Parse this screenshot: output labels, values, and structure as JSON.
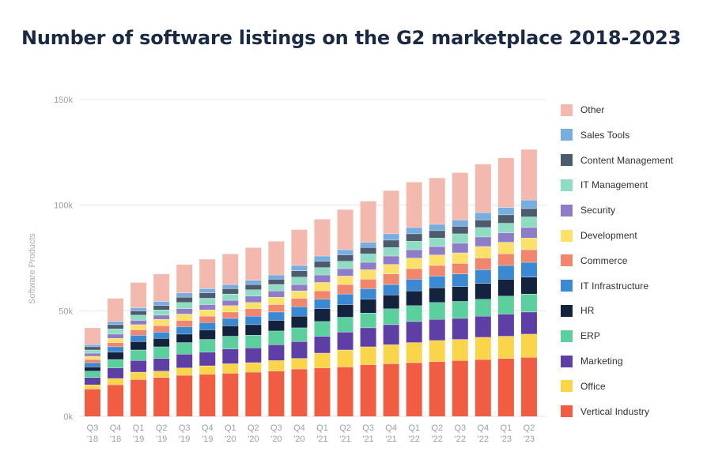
{
  "chart_data": {
    "type": "bar",
    "stacked": true,
    "title": "Number of software listings on the G2 marketplace 2018-2023",
    "ylabel": "Software Products",
    "xlabel": "",
    "ylim": [
      0,
      150000
    ],
    "y_ticks": [
      0,
      50000,
      100000,
      150000
    ],
    "y_tick_labels": [
      "0k",
      "50k",
      "100k",
      "150k"
    ],
    "grid": true,
    "legend_position": "right",
    "categories": [
      [
        "Q3",
        "'18"
      ],
      [
        "Q4",
        "'18"
      ],
      [
        "Q1",
        "'19"
      ],
      [
        "Q2",
        "'19"
      ],
      [
        "Q3",
        "'19"
      ],
      [
        "Q4",
        "'19"
      ],
      [
        "Q1",
        "'20"
      ],
      [
        "Q2",
        "'20"
      ],
      [
        "Q3",
        "'20"
      ],
      [
        "Q4",
        "'20"
      ],
      [
        "Q1",
        "'21"
      ],
      [
        "Q2",
        "'21"
      ],
      [
        "Q3",
        "'21"
      ],
      [
        "Q4",
        "'21"
      ],
      [
        "Q1",
        "'22"
      ],
      [
        "Q2",
        "'22"
      ],
      [
        "Q3",
        "'22"
      ],
      [
        "Q4",
        "'22"
      ],
      [
        "Q1",
        "'23"
      ],
      [
        "Q2",
        "'23"
      ]
    ],
    "series": [
      {
        "name": "Vertical Industry",
        "color": "#f05d42",
        "values": [
          13000,
          15000,
          17500,
          18500,
          19500,
          20000,
          20500,
          21000,
          21500,
          22500,
          23000,
          23500,
          24500,
          25000,
          25500,
          26000,
          26500,
          27000,
          27500,
          28000
        ]
      },
      {
        "name": "Office",
        "color": "#fad54a",
        "values": [
          2000,
          3000,
          3500,
          3000,
          3500,
          4000,
          4500,
          4500,
          5000,
          5000,
          7000,
          8000,
          8500,
          9000,
          9500,
          10000,
          10000,
          10500,
          10500,
          11000
        ]
      },
      {
        "name": "Marketing",
        "color": "#5e3fa6",
        "values": [
          3500,
          5000,
          5500,
          6000,
          6500,
          6500,
          7000,
          7000,
          7500,
          8000,
          8000,
          8500,
          9000,
          9500,
          10000,
          10000,
          10000,
          10000,
          10500,
          10500
        ]
      },
      {
        "name": "ERP",
        "color": "#5ccf9e",
        "values": [
          3000,
          4000,
          5000,
          5500,
          5500,
          6000,
          6000,
          6000,
          6500,
          6500,
          7000,
          7000,
          7000,
          7500,
          7500,
          8000,
          8000,
          8000,
          8500,
          8500
        ]
      },
      {
        "name": "HR",
        "color": "#13223d",
        "values": [
          2000,
          3500,
          4000,
          4000,
          4000,
          4500,
          5000,
          5000,
          5000,
          5500,
          6000,
          6000,
          6500,
          6500,
          7000,
          7000,
          7000,
          7500,
          8000,
          8000
        ]
      },
      {
        "name": "IT Infrastructure",
        "color": "#3b88d3",
        "values": [
          2000,
          2500,
          3000,
          3000,
          3500,
          3500,
          3500,
          4000,
          4000,
          4500,
          4500,
          5000,
          5000,
          5000,
          5500,
          5500,
          6000,
          6500,
          6500,
          7000
        ]
      },
      {
        "name": "Commerce",
        "color": "#f2866d",
        "values": [
          1500,
          2000,
          2500,
          3000,
          3000,
          3000,
          3000,
          3500,
          3500,
          4000,
          4000,
          4500,
          4500,
          5000,
          5000,
          5000,
          5000,
          5500,
          5500,
          6000
        ]
      },
      {
        "name": "Development",
        "color": "#fbe06a",
        "values": [
          1500,
          2000,
          2500,
          3000,
          3000,
          3000,
          3000,
          3000,
          3500,
          3500,
          4000,
          4000,
          4500,
          4500,
          5000,
          5000,
          5000,
          5500,
          5500,
          5500
        ]
      },
      {
        "name": "Security",
        "color": "#8f7cc9",
        "values": [
          1500,
          2000,
          2000,
          2000,
          2500,
          2500,
          2500,
          3000,
          3000,
          3000,
          3500,
          3500,
          3500,
          4000,
          4000,
          4000,
          4500,
          4500,
          4500,
          5000
        ]
      },
      {
        "name": "IT Management",
        "color": "#8fdcc2",
        "values": [
          1500,
          2500,
          2500,
          2500,
          3000,
          3000,
          3000,
          3000,
          3000,
          3500,
          3500,
          3500,
          4000,
          4000,
          4000,
          4000,
          4500,
          4500,
          4500,
          5000
        ]
      },
      {
        "name": "Content Management",
        "color": "#4d5b6e",
        "values": [
          1500,
          2000,
          2000,
          2000,
          2500,
          2500,
          2500,
          2500,
          2500,
          3000,
          3000,
          3000,
          3000,
          3500,
          3500,
          3500,
          3500,
          3500,
          4000,
          4000
        ]
      },
      {
        "name": "Sales Tools",
        "color": "#78aedf",
        "values": [
          1000,
          1500,
          1500,
          2000,
          2000,
          2000,
          2000,
          2000,
          2000,
          2500,
          2500,
          2500,
          2500,
          3000,
          3000,
          3000,
          3000,
          3500,
          3500,
          4000
        ]
      },
      {
        "name": "Other",
        "color": "#f4b9ae",
        "values": [
          8000,
          11000,
          12000,
          13000,
          13500,
          14000,
          14500,
          15500,
          16000,
          17000,
          17500,
          19000,
          19500,
          20500,
          21500,
          22000,
          22500,
          23000,
          23500,
          24000
        ]
      }
    ]
  }
}
